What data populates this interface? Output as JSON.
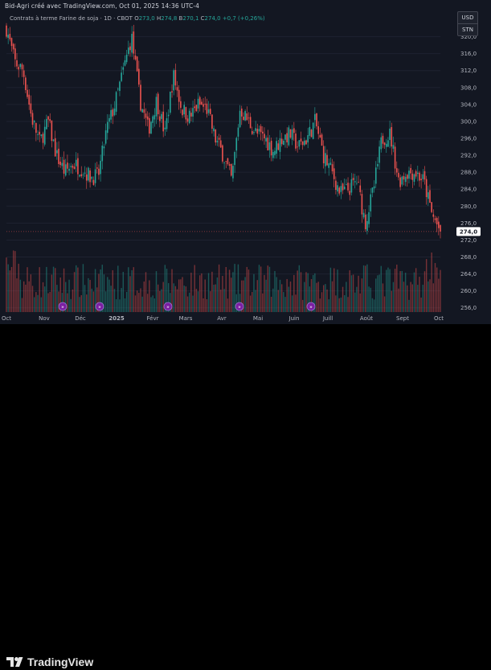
{
  "caption": "Bid-Agri créé avec TradingView.com, Oct 01, 2025 14:36 UTC-4",
  "legend": {
    "symbol": "Contrats à terme Farine de soja · 1D · CBOT",
    "o_label": "O",
    "o_value": "273,0",
    "h_label": "H",
    "h_value": "274,8",
    "b_label": "B",
    "b_value": "270,1",
    "c_label": "C",
    "c_value": "274,0",
    "change": "+0,7 (+0,26%)"
  },
  "currency": {
    "unit": "USD",
    "secondary": "STN"
  },
  "last_price_label": "274,0",
  "brand": "TradingView",
  "colors": {
    "background": "#131722",
    "up": "#26a69a",
    "down": "#ef5350",
    "axis_text": "#b2b5be",
    "event_marker": "#7b1fa2",
    "price_badge": "#ffffff"
  },
  "chart_data": {
    "type": "candlestick",
    "interval": "1D",
    "price_unit": "USD",
    "ylim": [
      255,
      326
    ],
    "y_ticks": [
      "256,0",
      "260,0",
      "264,0",
      "268,0",
      "272,0",
      "276,0",
      "280,0",
      "284,0",
      "288,0",
      "292,0",
      "296,0",
      "300,0",
      "304,0",
      "308,0",
      "312,0",
      "316,0",
      "320,0"
    ],
    "x_ticks": [
      "Oct",
      "Nov",
      "Déc",
      "2025",
      "Févr",
      "Mars",
      "Avr",
      "Mai",
      "Juin",
      "Juill",
      "Août",
      "Sept",
      "Oct"
    ],
    "last_close": 274.0,
    "close_path": [
      [
        "2024-10-01",
        322
      ],
      [
        "2024-10-08",
        314
      ],
      [
        "2024-10-15",
        312
      ],
      [
        "2024-10-22",
        301
      ],
      [
        "2024-10-29",
        295
      ],
      [
        "2024-11-05",
        300
      ],
      [
        "2024-11-12",
        292
      ],
      [
        "2024-11-19",
        288
      ],
      [
        "2024-11-26",
        290
      ],
      [
        "2024-12-03",
        289
      ],
      [
        "2024-12-10",
        287
      ],
      [
        "2024-12-17",
        287
      ],
      [
        "2024-12-24",
        298
      ],
      [
        "2024-12-31",
        304
      ],
      [
        "2025-01-07",
        312
      ],
      [
        "2025-01-14",
        320
      ],
      [
        "2025-01-21",
        305
      ],
      [
        "2025-01-28",
        298
      ],
      [
        "2025-02-04",
        305
      ],
      [
        "2025-02-11",
        297
      ],
      [
        "2025-02-18",
        311
      ],
      [
        "2025-02-25",
        303
      ],
      [
        "2025-03-04",
        301
      ],
      [
        "2025-03-11",
        304
      ],
      [
        "2025-03-18",
        303
      ],
      [
        "2025-03-25",
        296
      ],
      [
        "2025-04-01",
        292
      ],
      [
        "2025-04-08",
        286
      ],
      [
        "2025-04-15",
        303
      ],
      [
        "2025-04-22",
        300
      ],
      [
        "2025-04-29",
        297
      ],
      [
        "2025-05-06",
        296
      ],
      [
        "2025-05-13",
        293
      ],
      [
        "2025-05-20",
        296
      ],
      [
        "2025-05-27",
        297
      ],
      [
        "2025-06-03",
        294
      ],
      [
        "2025-06-10",
        296
      ],
      [
        "2025-06-17",
        300
      ],
      [
        "2025-06-24",
        292
      ],
      [
        "2025-07-01",
        288
      ],
      [
        "2025-07-08",
        283
      ],
      [
        "2025-07-15",
        284
      ],
      [
        "2025-07-22",
        286
      ],
      [
        "2025-07-29",
        276
      ],
      [
        "2025-08-05",
        284
      ],
      [
        "2025-08-12",
        296
      ],
      [
        "2025-08-19",
        297
      ],
      [
        "2025-08-26",
        286
      ],
      [
        "2025-09-02",
        288
      ],
      [
        "2025-09-09",
        288
      ],
      [
        "2025-09-16",
        286
      ],
      [
        "2025-09-23",
        278
      ],
      [
        "2025-09-30",
        274
      ]
    ],
    "event_markers": [
      "Nov",
      "Déc",
      "Févr",
      "Avr",
      "Juin"
    ],
    "volume": "histogram, relative heights, up bars teal / down bars red"
  }
}
